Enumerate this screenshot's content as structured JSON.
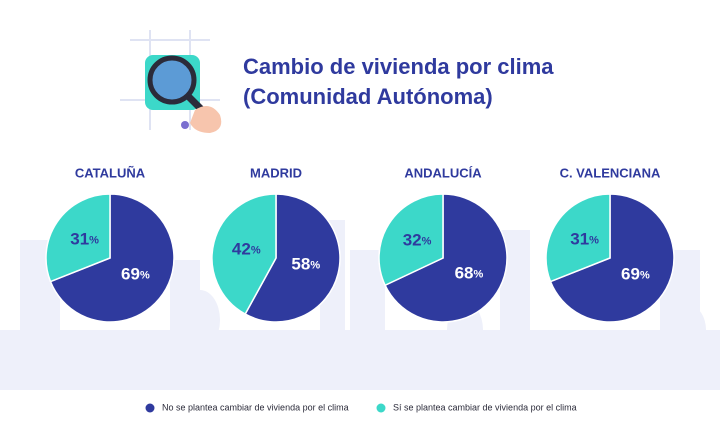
{
  "header": {
    "title": "Cambio de vivienda por clima",
    "subtitle": "(Comunidad Autónoma)"
  },
  "chart_data": [
    {
      "type": "pie",
      "title": "CATALUÑA",
      "categories": [
        "No se plantea cambiar de vivienda por el clima",
        "Sí se plantea cambiar de vivienda por el clima"
      ],
      "values": [
        69,
        31
      ],
      "value_labels": [
        "69%",
        "31%"
      ],
      "colors": [
        "#2f3a9e",
        "#3cd8c9"
      ]
    },
    {
      "type": "pie",
      "title": "MADRID",
      "categories": [
        "No se plantea cambiar de vivienda por el clima",
        "Sí se plantea cambiar de vivienda por el clima"
      ],
      "values": [
        58,
        42
      ],
      "value_labels": [
        "58%",
        "42%"
      ],
      "colors": [
        "#2f3a9e",
        "#3cd8c9"
      ]
    },
    {
      "type": "pie",
      "title": "ANDALUCÍA",
      "categories": [
        "No se plantea cambiar de vivienda por el clima",
        "Sí se plantea cambiar de vivienda por el clima"
      ],
      "values": [
        68,
        32
      ],
      "value_labels": [
        "68%",
        "32%"
      ],
      "colors": [
        "#2f3a9e",
        "#3cd8c9"
      ]
    },
    {
      "type": "pie",
      "title": "C. VALENCIANA",
      "categories": [
        "No se plantea cambiar de vivienda por el clima",
        "Sí se plantea cambiar de vivienda por el clima"
      ],
      "values": [
        69,
        31
      ],
      "value_labels": [
        "69%",
        "31%"
      ],
      "colors": [
        "#2f3a9e",
        "#3cd8c9"
      ]
    }
  ]
}
